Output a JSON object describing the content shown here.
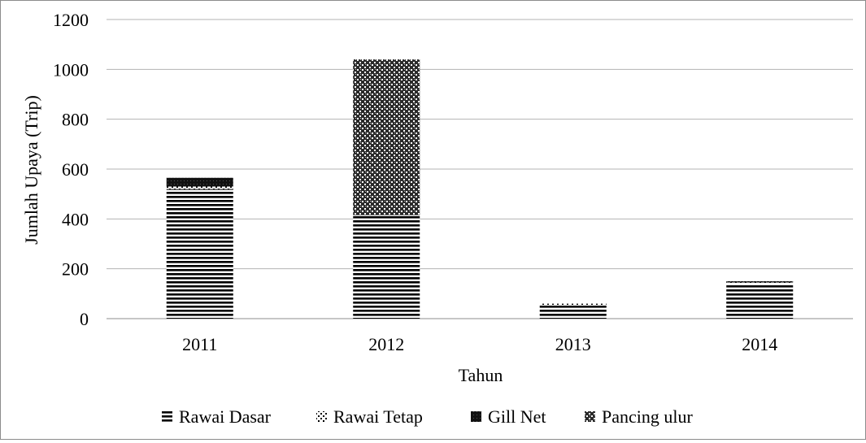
{
  "chart_data": {
    "type": "bar",
    "stacked": true,
    "xlabel": "Tahun",
    "ylabel": "Jumlah Upaya (Trip)",
    "categories": [
      "2011",
      "2012",
      "2013",
      "2014"
    ],
    "ylim": [
      0,
      1200
    ],
    "yticks": [
      "0",
      "200",
      "400",
      "600",
      "800",
      "1000",
      "1200"
    ],
    "grid": true,
    "legend_position": "bottom",
    "series": [
      {
        "name": "Rawai Dasar",
        "values": [
          520,
          415,
          55,
          140
        ],
        "pattern": "horizontal-lines"
      },
      {
        "name": "Rawai Tetap",
        "values": [
          10,
          0,
          5,
          5
        ],
        "pattern": "dots"
      },
      {
        "name": "Gill Net",
        "values": [
          35,
          0,
          0,
          5
        ],
        "pattern": "solid-dark"
      },
      {
        "name": "Pancing ulur",
        "values": [
          0,
          625,
          0,
          0
        ],
        "pattern": "checker"
      }
    ]
  }
}
